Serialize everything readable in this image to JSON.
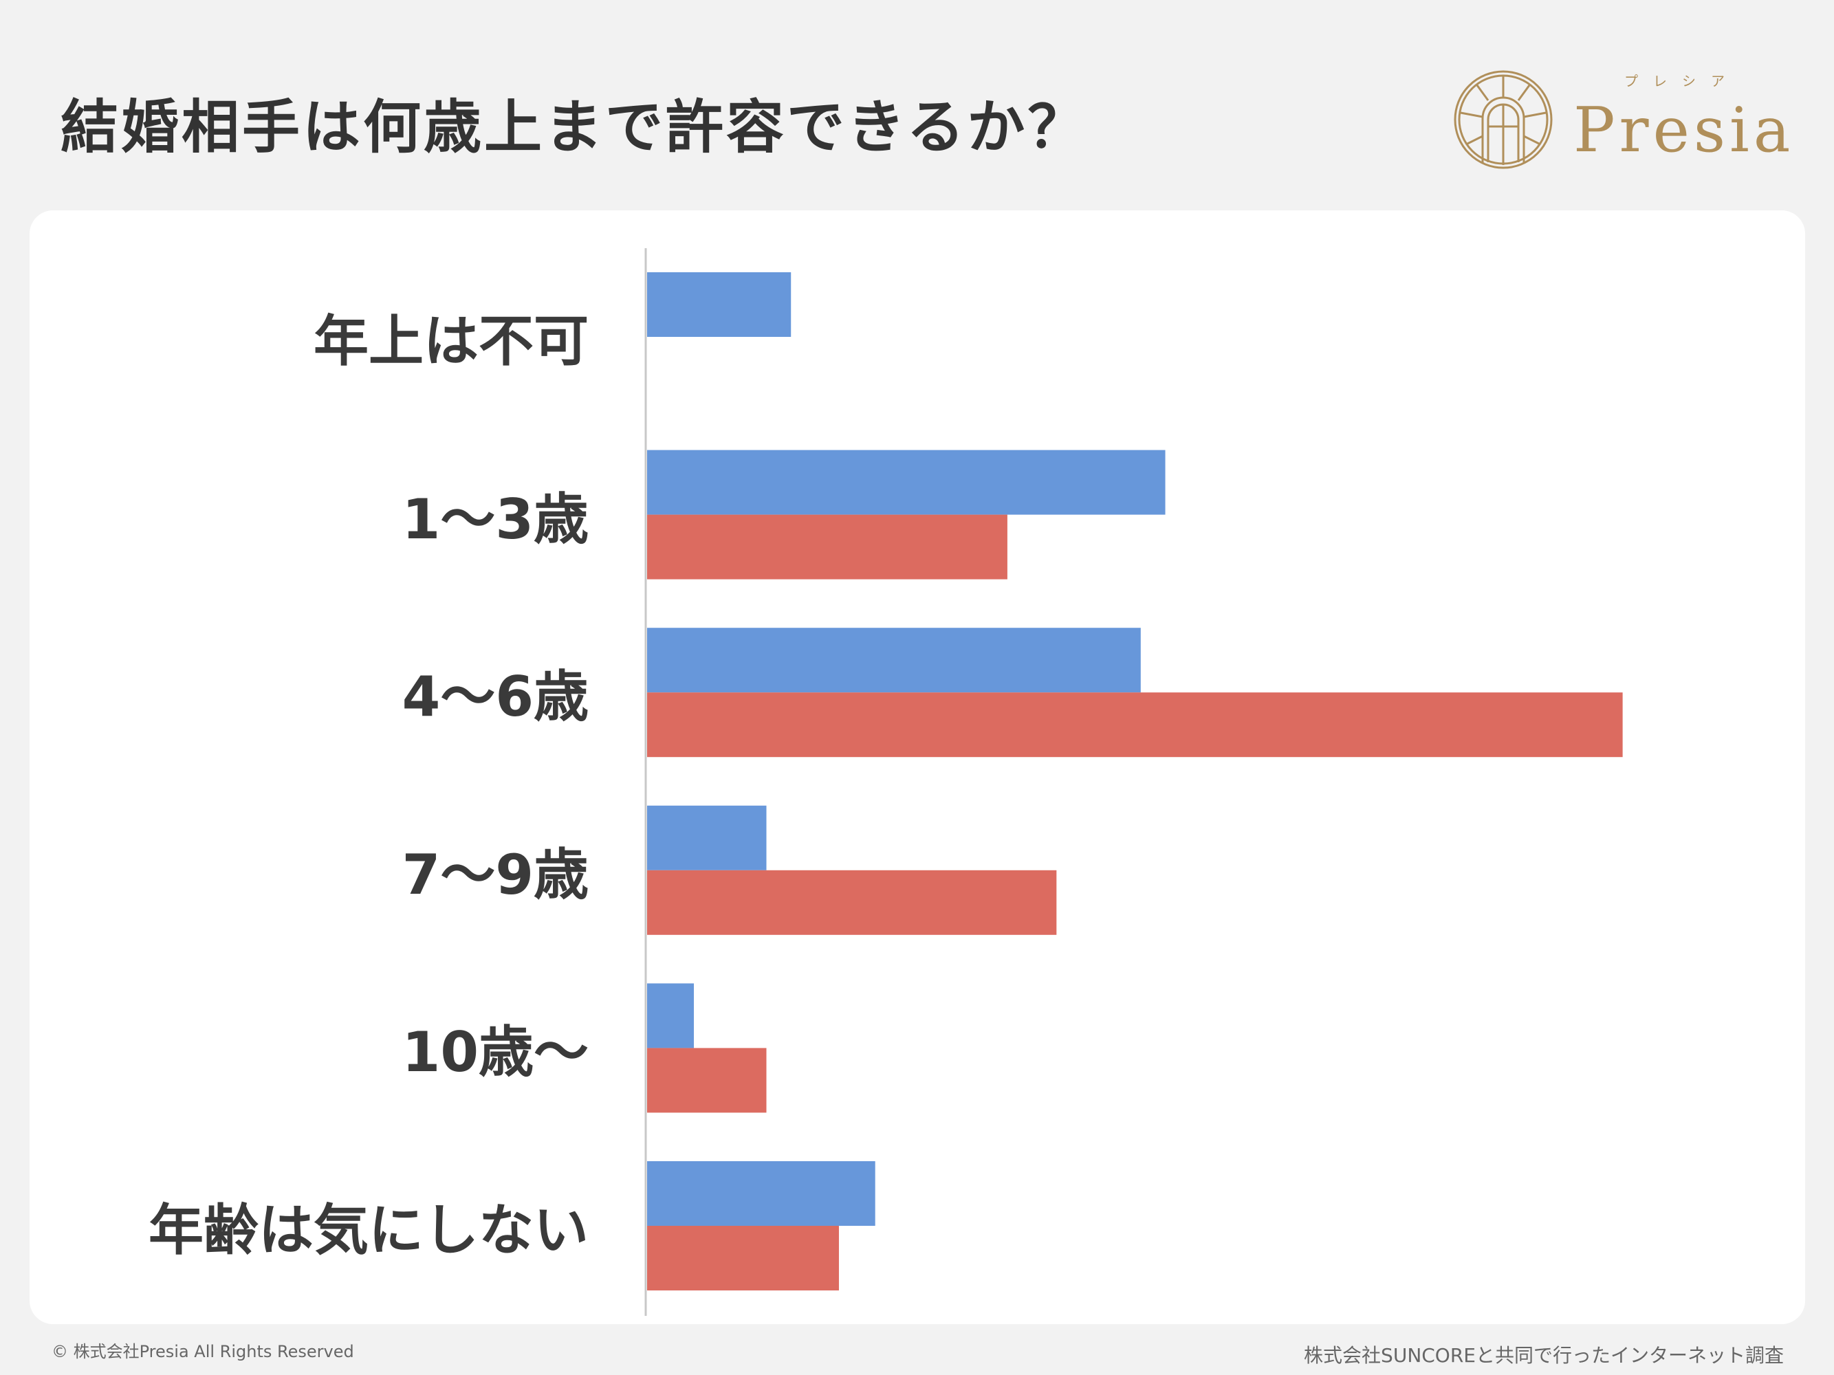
{
  "header": {
    "title": "結婚相手は何歳上まで許容できるか？"
  },
  "logo": {
    "text": "Presia",
    "kana": "プレシア",
    "color": "#b08f5a"
  },
  "footer": {
    "copyright": "© 株式会社Presia All Rights Reserved",
    "source": "株式会社SUNCOREと共同で行ったインターネット調査"
  },
  "chart_data": {
    "type": "bar",
    "orientation": "horizontal",
    "categories": [
      "年上は不可",
      "1〜3歳",
      "4〜6歳",
      "7〜9歳",
      "10歳〜",
      "年齢は気にしない"
    ],
    "series": [
      {
        "color": "#6797da",
        "values": [
          12.3,
          44.3,
          42.2,
          10.2,
          4.0,
          19.5
        ]
      },
      {
        "color": "#dc6b60",
        "values": [
          0,
          30.8,
          83.4,
          35.0,
          10.2,
          16.4
        ]
      }
    ],
    "title": "",
    "xlabel": "",
    "ylabel": "",
    "xlim": [
      0,
      100
    ],
    "grid": false,
    "legend": "none",
    "axis_values_shown": false
  }
}
